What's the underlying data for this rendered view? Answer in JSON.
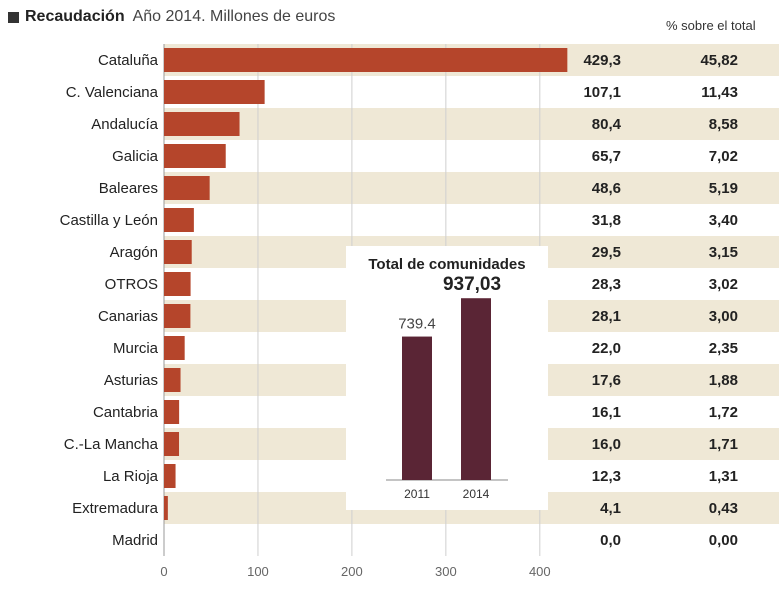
{
  "header": {
    "title": "Recaudación",
    "subtitle": "Año 2014. Millones de euros",
    "pct_header": "% sobre el total"
  },
  "chart_data": [
    {
      "type": "bar",
      "orientation": "horizontal",
      "title": "Recaudación",
      "subtitle": "Año 2014. Millones de euros",
      "categories": [
        "Cataluña",
        "C. Valenciana",
        "Andalucía",
        "Galicia",
        "Baleares",
        "Castilla y León",
        "Aragón",
        "OTROS",
        "Canarias",
        "Murcia",
        "Asturias",
        "Cantabria",
        "C.-La Mancha",
        "La Rioja",
        "Extremadura",
        "Madrid"
      ],
      "values": [
        429.3,
        107.1,
        80.4,
        65.7,
        48.6,
        31.8,
        29.5,
        28.3,
        28.1,
        22.0,
        17.6,
        16.1,
        16.0,
        12.3,
        4.1,
        0.0
      ],
      "value_labels": [
        "429,3",
        "107,1",
        "80,4",
        "65,7",
        "48,6",
        "31,8",
        "29,5",
        "28,3",
        "28,1",
        "22,0",
        "17,6",
        "16,1",
        "16,0",
        "12,3",
        "4,1",
        "0,0"
      ],
      "percent_label": "% sobre el total",
      "percents": [
        "45,82",
        "11,43",
        "8,58",
        "7,02",
        "5,19",
        "3,40",
        "3,15",
        "3,02",
        "3,00",
        "2,35",
        "1,88",
        "1,72",
        "1,71",
        "1,31",
        "0,43",
        "0,00"
      ],
      "xlim": [
        0,
        430
      ],
      "xticks": [
        0,
        100,
        200,
        300,
        400
      ],
      "grid": true,
      "bar_color": "#b5452b",
      "band_color": "#efe8d6"
    },
    {
      "type": "bar",
      "title": "Total de comunidades",
      "categories": [
        "2011",
        "2014"
      ],
      "values": [
        739.4,
        937.03
      ],
      "value_labels": [
        "739.4",
        "937,03"
      ],
      "ylim": [
        0,
        1000
      ],
      "bar_color": "#5a2535"
    }
  ]
}
